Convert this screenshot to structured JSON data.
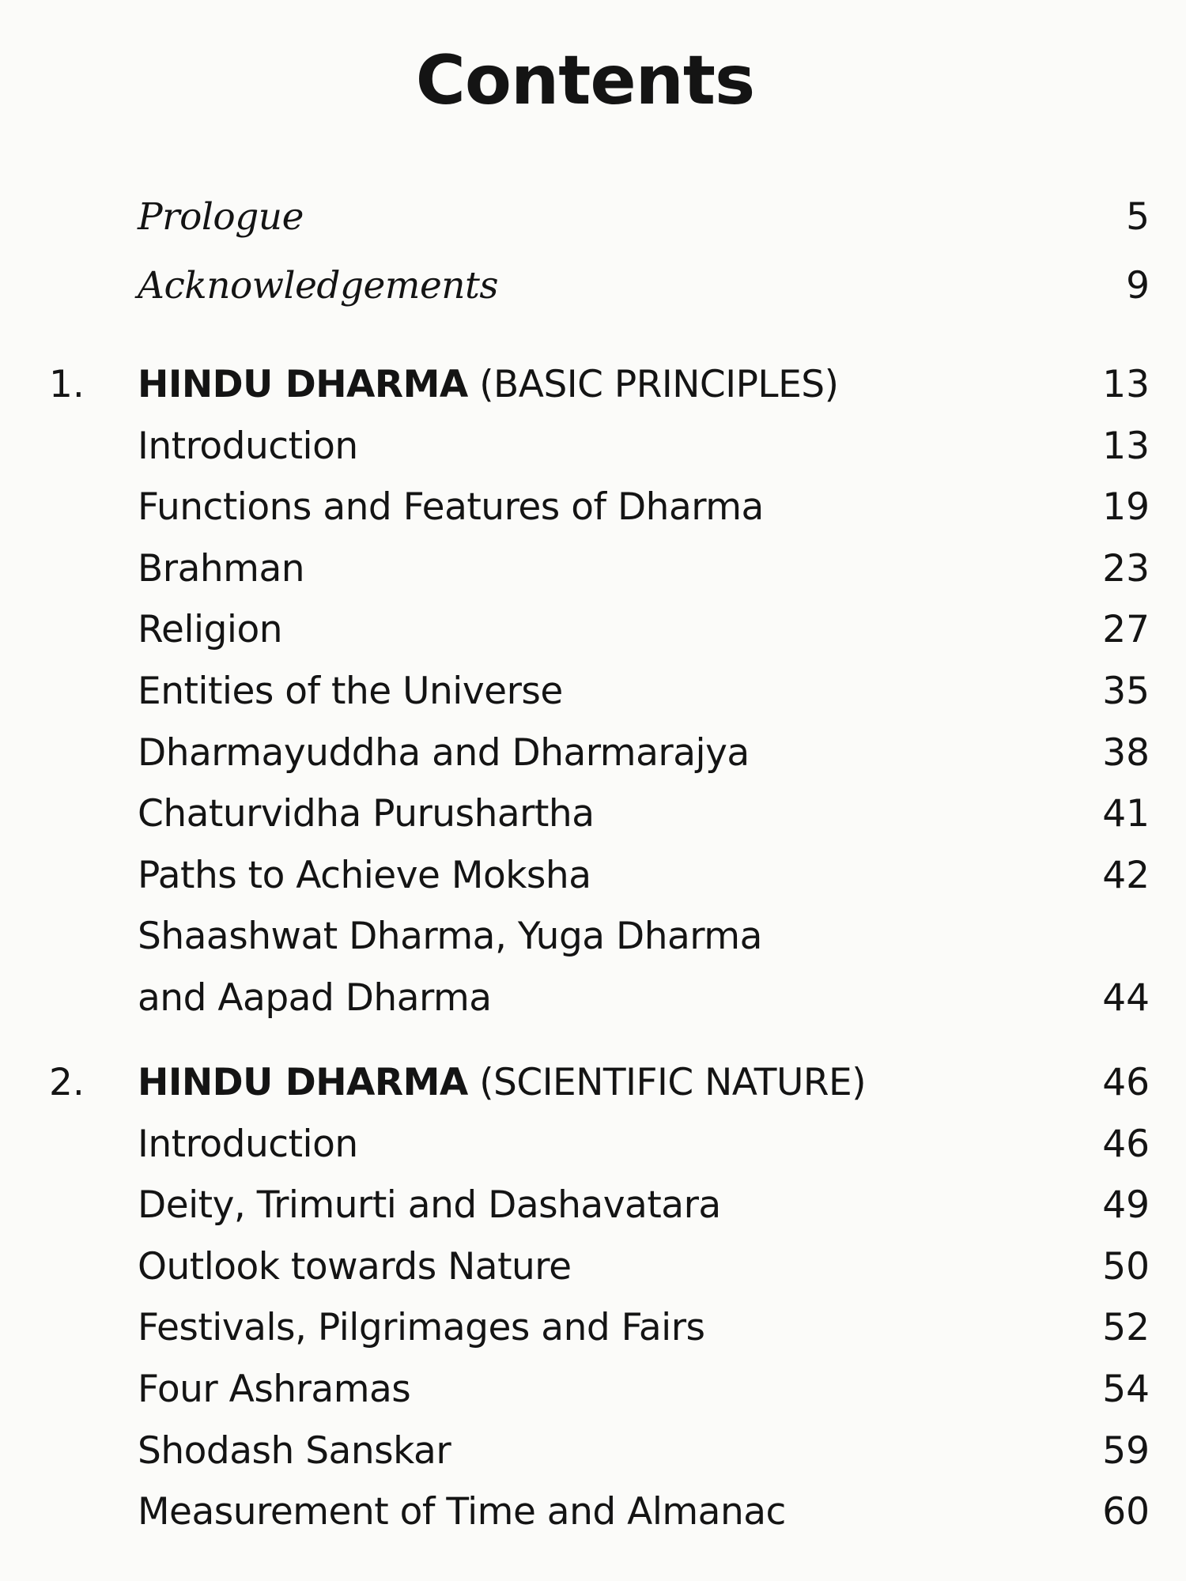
{
  "title": "Contents",
  "front_matter": [
    {
      "label": "Prologue",
      "page": "5"
    },
    {
      "label": "Acknowledgements",
      "page": "9"
    }
  ],
  "chapters": [
    {
      "number": "1.",
      "title_bold": "HINDU DHARMA",
      "title_rest": " (BASIC PRINCIPLES)",
      "page": "13",
      "entries": [
        {
          "label": "Introduction",
          "page": "13"
        },
        {
          "label": "Functions and Features of Dharma",
          "page": "19"
        },
        {
          "label": "Brahman",
          "page": "23"
        },
        {
          "label": "Religion",
          "page": "27"
        },
        {
          "label": "Entities of the Universe",
          "page": "35"
        },
        {
          "label": "Dharmayuddha and Dharmarajya",
          "page": "38"
        },
        {
          "label": "Chaturvidha Purushartha",
          "page": "41"
        },
        {
          "label": "Paths to Achieve Moksha",
          "page": "42"
        },
        {
          "label": "Shaashwat Dharma, Yuga Dharma",
          "page": ""
        },
        {
          "label": "and Aapad Dharma",
          "page": "44"
        }
      ]
    },
    {
      "number": "2.",
      "title_bold": "HINDU DHARMA",
      "title_rest": " (SCIENTIFIC NATURE)",
      "page": "46",
      "entries": [
        {
          "label": "Introduction",
          "page": "46"
        },
        {
          "label": "Deity, Trimurti and Dashavatara",
          "page": "49"
        },
        {
          "label": "Outlook towards Nature",
          "page": "50"
        },
        {
          "label": "Festivals, Pilgrimages and Fairs",
          "page": "52"
        },
        {
          "label": "Four Ashramas",
          "page": "54"
        },
        {
          "label": "Shodash Sanskar",
          "page": "59"
        },
        {
          "label": "Measurement of Time and Almanac",
          "page": "60"
        }
      ]
    }
  ]
}
